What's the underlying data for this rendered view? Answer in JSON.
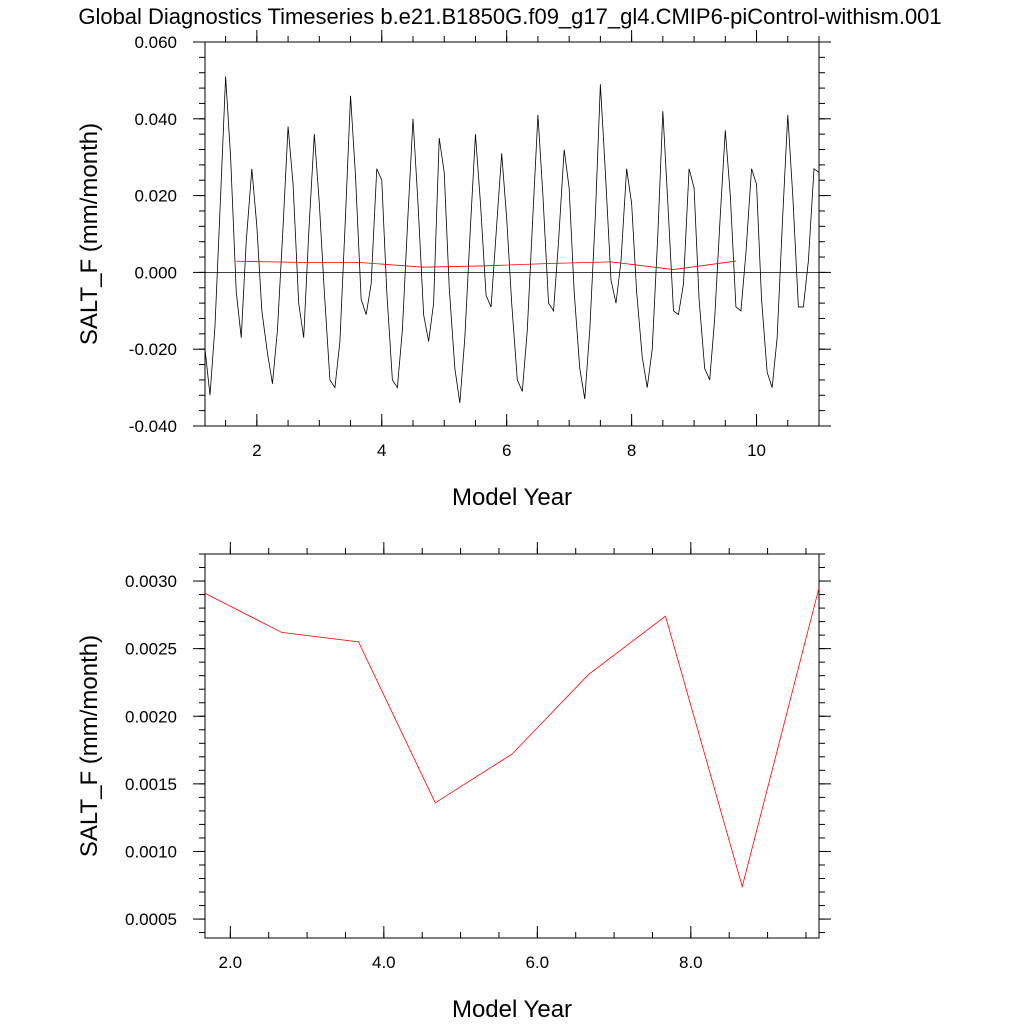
{
  "title": "Global Diagnostics Timeseries b.e21.B1850G.f09_g17_gl4.CMIP6-piControl-withism.001",
  "chart_data": [
    {
      "type": "line",
      "xlabel": "Model Year",
      "ylabel": "SALT_F (mm/month)",
      "xlim": [
        1.17,
        11.0
      ],
      "ylim": [
        -0.04,
        0.06
      ],
      "x_ticks": [
        2,
        4,
        6,
        8,
        10
      ],
      "x_tick_labels": [
        "2",
        "4",
        "6",
        "8",
        "10"
      ],
      "y_ticks": [
        -0.04,
        -0.02,
        0.0,
        0.02,
        0.04,
        0.06
      ],
      "y_tick_labels": [
        "-0.040",
        "-0.020",
        "0.000",
        "0.020",
        "0.040",
        "0.060"
      ],
      "zero_line": 0.0,
      "grid": false,
      "series": [
        {
          "color": "#000000",
          "x": [
            1.17,
            1.25,
            1.33,
            1.42,
            1.5,
            1.58,
            1.67,
            1.75,
            1.83,
            1.92,
            2.0,
            2.08,
            2.17,
            2.25,
            2.33,
            2.42,
            2.5,
            2.58,
            2.67,
            2.75,
            2.83,
            2.92,
            3.0,
            3.08,
            3.17,
            3.25,
            3.33,
            3.42,
            3.5,
            3.58,
            3.67,
            3.75,
            3.83,
            3.92,
            4.0,
            4.08,
            4.17,
            4.25,
            4.33,
            4.42,
            4.5,
            4.58,
            4.67,
            4.75,
            4.83,
            4.92,
            5.0,
            5.08,
            5.17,
            5.25,
            5.33,
            5.42,
            5.5,
            5.58,
            5.67,
            5.75,
            5.83,
            5.92,
            6.0,
            6.08,
            6.17,
            6.25,
            6.33,
            6.42,
            6.5,
            6.58,
            6.67,
            6.75,
            6.83,
            6.92,
            7.0,
            7.08,
            7.17,
            7.25,
            7.33,
            7.42,
            7.5,
            7.58,
            7.67,
            7.75,
            7.83,
            7.92,
            8.0,
            8.08,
            8.17,
            8.25,
            8.33,
            8.42,
            8.5,
            8.58,
            8.67,
            8.75,
            8.83,
            8.92,
            9.0,
            9.08,
            9.17,
            9.25,
            9.33,
            9.42,
            9.5,
            9.58,
            9.67,
            9.75,
            9.83,
            9.92,
            10.0,
            10.08,
            10.17,
            10.25,
            10.33,
            10.42,
            10.5,
            10.58,
            10.67,
            10.75,
            10.83,
            10.92,
            11.0
          ],
          "y": [
            -0.02,
            -0.032,
            -0.014,
            0.02,
            0.051,
            0.03,
            -0.005,
            -0.017,
            0.008,
            0.027,
            0.012,
            -0.01,
            -0.021,
            -0.029,
            -0.015,
            0.012,
            0.038,
            0.023,
            -0.008,
            -0.017,
            0.01,
            0.036,
            0.018,
            -0.005,
            -0.028,
            -0.03,
            -0.018,
            0.015,
            0.046,
            0.025,
            -0.007,
            -0.011,
            -0.003,
            0.027,
            0.024,
            -0.005,
            -0.028,
            -0.03,
            -0.015,
            0.015,
            0.04,
            0.018,
            -0.011,
            -0.018,
            -0.008,
            0.035,
            0.026,
            -0.004,
            -0.025,
            -0.034,
            -0.017,
            0.012,
            0.036,
            0.018,
            -0.006,
            -0.009,
            0.01,
            0.031,
            0.014,
            -0.008,
            -0.028,
            -0.031,
            -0.015,
            0.015,
            0.041,
            0.02,
            -0.008,
            -0.01,
            0.008,
            0.032,
            0.022,
            -0.005,
            -0.025,
            -0.033,
            -0.015,
            0.015,
            0.049,
            0.026,
            -0.002,
            -0.008,
            0.003,
            0.027,
            0.018,
            -0.005,
            -0.022,
            -0.03,
            -0.02,
            0.01,
            0.042,
            0.018,
            -0.01,
            -0.011,
            -0.003,
            0.027,
            0.022,
            -0.007,
            -0.025,
            -0.028,
            -0.012,
            0.015,
            0.037,
            0.02,
            -0.009,
            -0.01,
            0.005,
            0.027,
            0.023,
            -0.007,
            -0.026,
            -0.03,
            -0.017,
            0.015,
            0.041,
            0.02,
            -0.009,
            -0.009,
            0.003,
            0.027,
            0.026
          ]
        },
        {
          "color": "#ff0000",
          "x": [
            1.67,
            2.67,
            3.67,
            4.67,
            5.67,
            6.67,
            7.67,
            8.67,
            9.67
          ],
          "y": [
            0.00291,
            0.00262,
            0.00255,
            0.00136,
            0.00172,
            0.00231,
            0.00274,
            0.00074,
            0.00295
          ]
        }
      ]
    },
    {
      "type": "line",
      "xlabel": "Model Year",
      "ylabel": "SALT_F (mm/month)",
      "xlim": [
        1.67,
        9.67
      ],
      "ylim": [
        0.00036,
        0.0032
      ],
      "x_ticks": [
        2.0,
        4.0,
        6.0,
        8.0
      ],
      "x_tick_labels": [
        "2.0",
        "4.0",
        "6.0",
        "8.0"
      ],
      "y_ticks": [
        0.0005,
        0.001,
        0.0015,
        0.002,
        0.0025,
        0.003
      ],
      "y_tick_labels": [
        "0.0005",
        "0.0010",
        "0.0015",
        "0.0020",
        "0.0025",
        "0.0030"
      ],
      "grid": false,
      "series": [
        {
          "color": "#ff0000",
          "x": [
            1.67,
            2.67,
            3.67,
            4.67,
            5.67,
            6.67,
            7.67,
            8.67,
            9.67
          ],
          "y": [
            0.00291,
            0.00262,
            0.00255,
            0.00136,
            0.00172,
            0.00231,
            0.00274,
            0.00074,
            0.00295
          ]
        }
      ]
    }
  ]
}
